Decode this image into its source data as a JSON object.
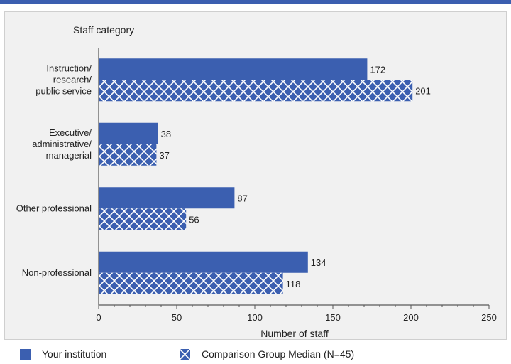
{
  "colors": {
    "bar": "#3b5fb0",
    "accent_bar": "#3b5fb0"
  },
  "chart_data": {
    "type": "bar",
    "orientation": "horizontal",
    "title": "",
    "ylabel": "Staff category",
    "xlabel": "Number of staff",
    "xlim": [
      0,
      250
    ],
    "xticks": [
      0,
      50,
      100,
      150,
      200,
      250
    ],
    "grid": false,
    "categories": [
      [
        "Instruction/",
        "research/",
        "public service"
      ],
      [
        "Executive/",
        "administrative/",
        "managerial"
      ],
      [
        "Other professional"
      ],
      [
        "Non-professional"
      ]
    ],
    "series": [
      {
        "name": "Your institution",
        "pattern": "solid",
        "values": [
          172,
          38,
          87,
          134
        ]
      },
      {
        "name": "Comparison Group Median (N=45)",
        "pattern": "crosshatch",
        "values": [
          201,
          37,
          56,
          118
        ]
      }
    ],
    "legend_position": "bottom"
  }
}
